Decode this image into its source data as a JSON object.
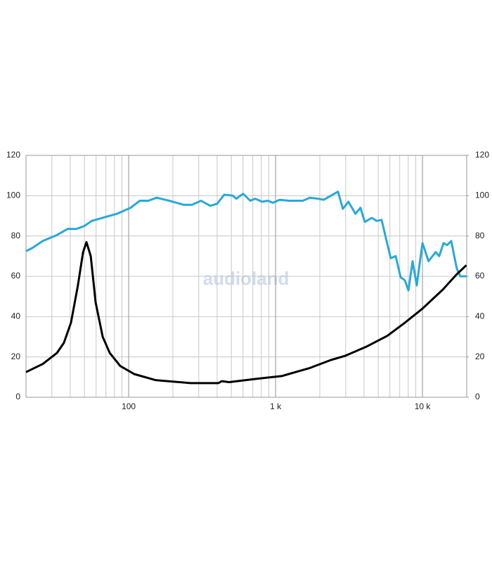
{
  "chart_data": {
    "type": "line",
    "xscale": "log",
    "grid": true,
    "watermark": "audioland",
    "xlim": [
      20,
      20000
    ],
    "xticks": [
      100,
      {
        "value": 1000,
        "label": "1 k"
      },
      {
        "value": 10000,
        "label": "10 k"
      }
    ],
    "ylim": [
      0,
      120
    ],
    "yticks": [
      0,
      20,
      40,
      60,
      80,
      100,
      120
    ],
    "y2lim": [
      0,
      120
    ],
    "y2ticks": [
      0,
      20,
      40,
      60,
      80,
      100,
      120
    ],
    "series": [
      {
        "color": "#2aa8d8",
        "x": [
          20,
          22,
          26,
          32.5,
          38.4,
          44,
          50,
          56,
          70,
          83,
          103,
          119,
          136,
          155,
          189,
          236,
          270,
          311,
          359,
          400,
          447,
          511,
          540,
          602,
          672,
          725,
          810,
          886,
          958,
          1067,
          1228,
          1532,
          1711,
          1955,
          2130,
          2380,
          2660,
          2870,
          3130,
          3500,
          3780,
          4050,
          4520,
          4880,
          5270,
          6080,
          6570,
          7100,
          7590,
          8020,
          8560,
          9140,
          10000,
          11000,
          12300,
          13000,
          13900,
          14700,
          15700,
          17100,
          18100,
          19900
        ],
        "values": [
          72.5,
          74,
          77.5,
          80.5,
          83.5,
          83.5,
          85,
          87.5,
          89.5,
          91,
          94,
          97.5,
          97.5,
          99,
          97.5,
          95.5,
          95.5,
          97.5,
          95,
          96,
          100.5,
          100,
          98.5,
          101,
          97.5,
          98.5,
          97,
          97.5,
          96.5,
          98,
          97.5,
          97.5,
          99,
          98.5,
          98,
          100,
          102,
          93.5,
          97,
          91,
          94,
          87,
          89,
          87.5,
          88,
          69,
          70,
          59.5,
          58,
          53,
          67.5,
          55.5,
          76.5,
          67.5,
          72,
          70,
          76.5,
          75.5,
          77.5,
          64,
          60,
          60
        ]
      },
      {
        "color": "#000000",
        "axis": "y2",
        "x": [
          20,
          26,
          32.5,
          36.2,
          40.5,
          45,
          48.9,
          51.6,
          55.2,
          59.6,
          66.5,
          74.3,
          87.6,
          109,
          152,
          264,
          409,
          430,
          483,
          710,
          1100,
          1228,
          1450,
          1711,
          2380,
          2960,
          4130,
          5770,
          7590,
          10000,
          13800,
          17100,
          19900
        ],
        "values": [
          12.5,
          16.5,
          22,
          27,
          37,
          55,
          72,
          77,
          70,
          47,
          30,
          22,
          15.5,
          11.5,
          8.5,
          7,
          7,
          8,
          7.5,
          9,
          10.5,
          11.5,
          13,
          14.5,
          18.5,
          20.5,
          25,
          30.5,
          37,
          44,
          53.5,
          61,
          65.5
        ]
      }
    ]
  }
}
